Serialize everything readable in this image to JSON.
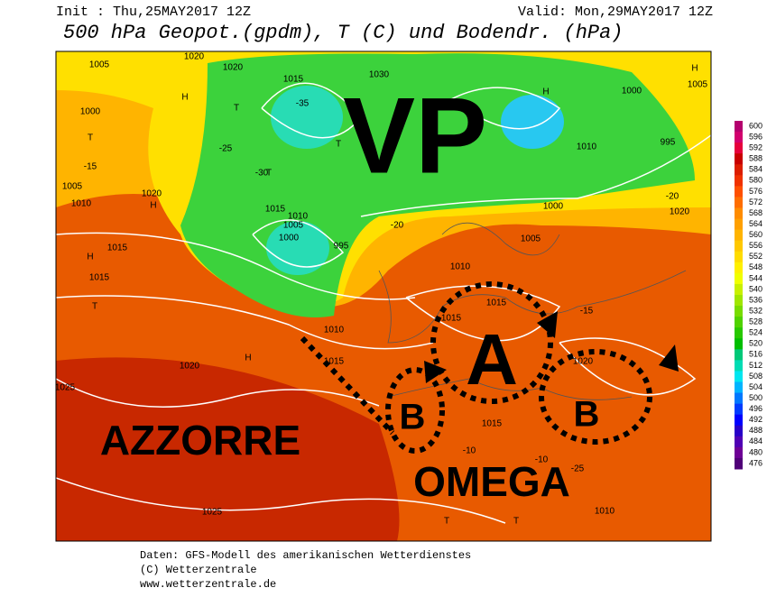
{
  "header": {
    "init": "Init : Thu,25MAY2017 12Z",
    "valid": "Valid: Mon,29MAY2017 12Z",
    "title": "500 hPa Geopot.(gpdm), T (C) und Bodendr. (hPa)"
  },
  "annotations": {
    "vp": "VP",
    "a": "A",
    "b_west": "B",
    "b_east": "B",
    "azzorre": "AZZORRE",
    "omega": "OMEGA"
  },
  "map_labels": [
    "1005",
    "1020",
    "1020",
    "1030",
    "1015",
    "1000",
    "1000",
    "1005",
    "995",
    "1005",
    "1010",
    "1020",
    "1015",
    "1010",
    "1005",
    "1000",
    "995",
    "1015",
    "1015",
    "1010",
    "1015",
    "1020",
    "1025",
    "1015",
    "1015",
    "1015",
    "1010",
    "1020",
    "1025",
    "1010",
    "1005",
    "1000",
    "1020",
    "1010",
    "H",
    "H",
    "H",
    "H",
    "H",
    "H",
    "T",
    "T",
    "T",
    "T",
    "T",
    "T",
    "T",
    "-15",
    "-20",
    "-25",
    "-30",
    "-35",
    "-15",
    "-10",
    "-10",
    "-20",
    "-25"
  ],
  "colorbar": {
    "labels": [
      600,
      596,
      592,
      588,
      584,
      580,
      576,
      572,
      568,
      564,
      560,
      556,
      552,
      548,
      544,
      540,
      536,
      532,
      528,
      524,
      520,
      516,
      512,
      508,
      504,
      500,
      496,
      492,
      488,
      484,
      480,
      476
    ]
  },
  "footer": [
    "Daten: GFS-Modell des amerikanischen Wetterdienstes",
    "(C) Wetterzentrale",
    "www.wetterzentrale.de"
  ]
}
